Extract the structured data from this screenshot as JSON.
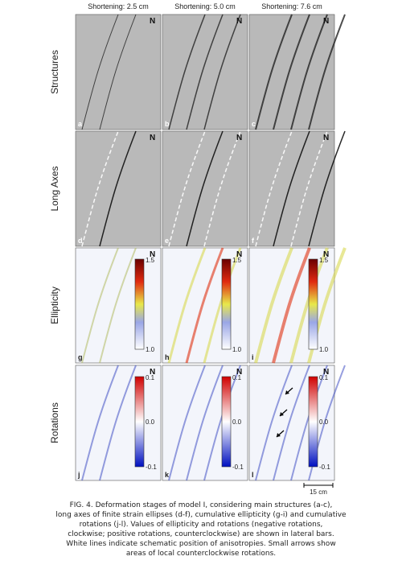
{
  "columns": [
    "Shortening: 2.5 cm",
    "Shortening: 5.0 cm",
    "Shortening: 7.6 cm"
  ],
  "rows": [
    {
      "label": "Structures",
      "panels": [
        "a",
        "b",
        "c"
      ]
    },
    {
      "label": "Long Axes",
      "panels": [
        "d",
        "e",
        "f"
      ]
    },
    {
      "label": "Ellipticity",
      "panels": [
        "g",
        "h",
        "i"
      ]
    },
    {
      "label": "Rotations",
      "panels": [
        "j",
        "k",
        "l"
      ]
    }
  ],
  "north": "N",
  "colorbars": {
    "ellipticity": {
      "max": "1.5",
      "min": "1.0"
    },
    "rotations": {
      "max": "0.1",
      "mid": "0.0",
      "min": "-0.1"
    }
  },
  "scale_bar": "15 cm",
  "caption": [
    "FIG. 4. Deformation stages of model I, considering main structures (a-c),",
    "long axes of finite strain ellipses (d-f), cumulative ellipticity (g-i) and cumulative",
    "rotations (j-l). Values of ellipticity and rotations (negative rotations,",
    "clockwise; positive rotations, counterclockwise) are shown in lateral bars.",
    "White lines indicate schematic position of anisotropies. Small arrows show",
    "areas of local counterclockwise rotations."
  ]
}
